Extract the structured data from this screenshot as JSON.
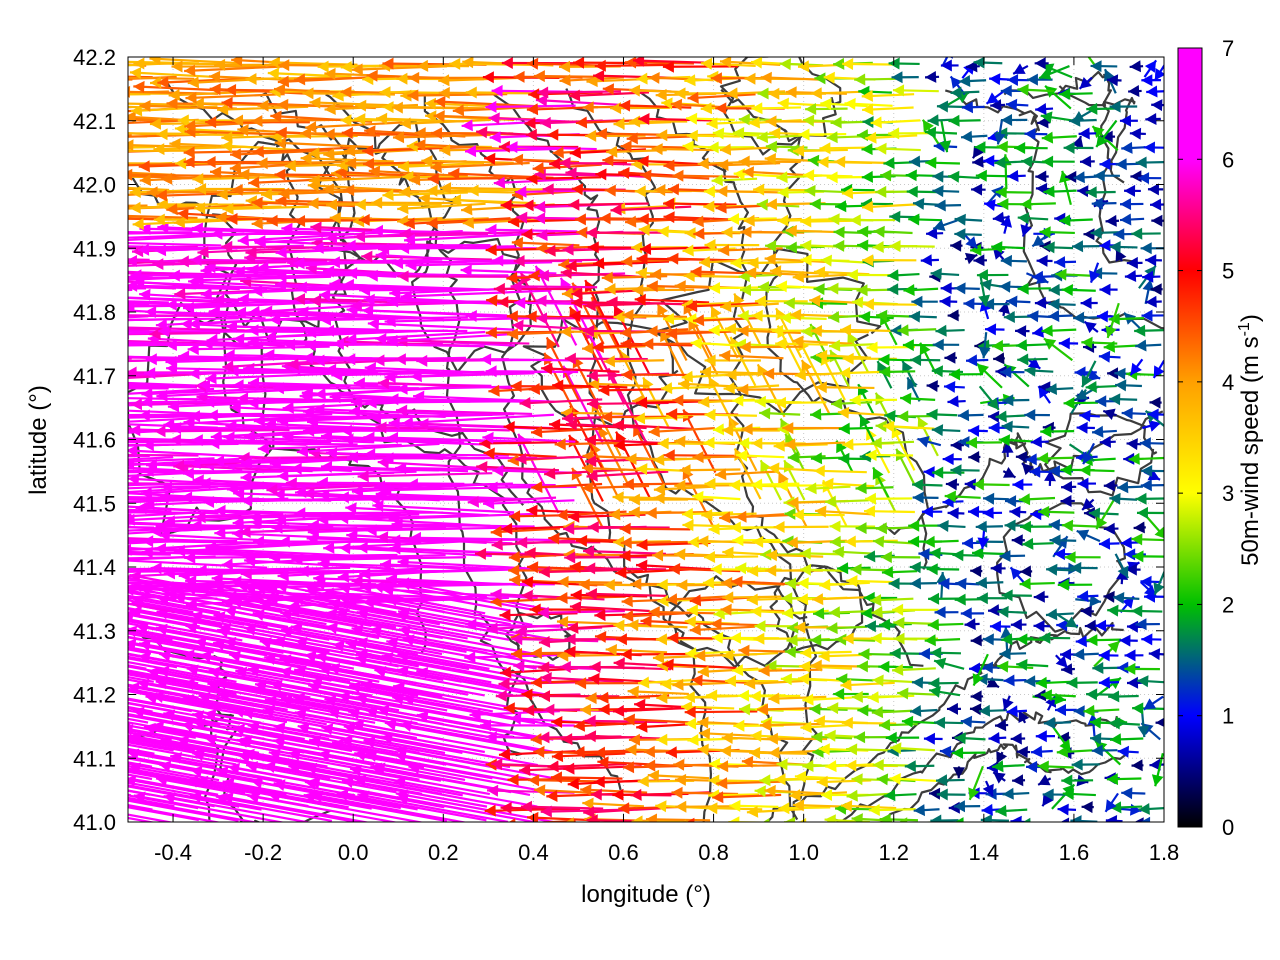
{
  "chart_data": {
    "type": "vector-field",
    "xlabel": "longitude (°)",
    "ylabel": "latitude (°)",
    "xlim": [
      -0.5,
      1.8
    ],
    "ylim": [
      41.0,
      42.2
    ],
    "xticks": [
      "-0.4",
      "-0.2",
      "0.0",
      "0.2",
      "0.4",
      "0.6",
      "0.8",
      "1.0",
      "1.2",
      "1.4",
      "1.6",
      "1.8"
    ],
    "xtick_values": [
      -0.4,
      -0.2,
      0.0,
      0.2,
      0.4,
      0.6,
      0.8,
      1.0,
      1.2,
      1.4,
      1.6,
      1.8
    ],
    "yticks": [
      "41.0",
      "41.1",
      "41.2",
      "41.3",
      "41.4",
      "41.5",
      "41.6",
      "41.7",
      "41.8",
      "41.9",
      "42.0",
      "42.1",
      "42.2"
    ],
    "ytick_values": [
      41.0,
      41.1,
      41.2,
      41.3,
      41.4,
      41.5,
      41.6,
      41.7,
      41.8,
      41.9,
      42.0,
      42.1,
      42.2
    ],
    "grid": true,
    "colorbar": {
      "label": "50m-wind speed (m s",
      "label_sup": "-1",
      "label_end": ")",
      "range": [
        0,
        7
      ],
      "ticks": [
        "0",
        "1",
        "2",
        "3",
        "4",
        "5",
        "6",
        "7"
      ],
      "tick_values": [
        0,
        1,
        2,
        3,
        4,
        5,
        6,
        7
      ],
      "colormap": [
        "#000000",
        "#0000ff",
        "#00c000",
        "#ffff00",
        "#ffa000",
        "#ff0000",
        "#ff00ff"
      ]
    },
    "contour_color": "#3c3c3c",
    "vectors_summary": {
      "west_sector_speed_ms": "6-7+ (magenta), flow toward west/west-northwest",
      "central_sector_speed_ms": "2-5 (green to orange), flow toward west",
      "east_sector_speed_ms": "0-1.5 (black/blue), weak flow toward west"
    }
  }
}
